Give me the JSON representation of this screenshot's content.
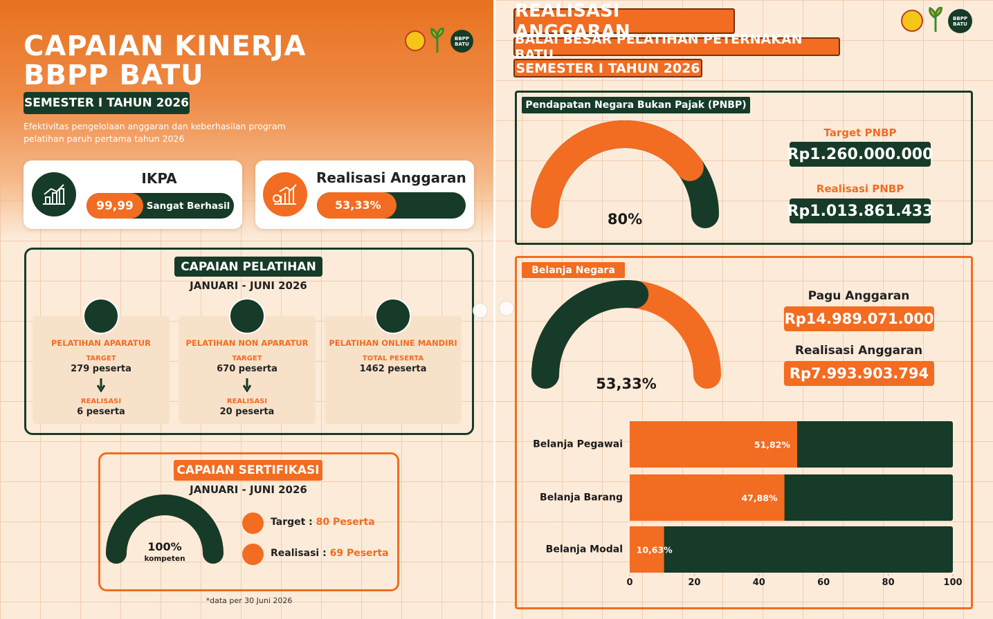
{
  "left": {
    "title_lines": [
      "CAPAIAN KINERJA",
      "BBPP BATU"
    ],
    "badge": "SEMESTER I TAHUN 2026",
    "subtitle": "Efektivitas pengelolaan anggaran dan keberhasilan program pelatihan paruh pertama tahun 2026",
    "logo_text": "BBPP BATU",
    "ikpa": {
      "title": "IKPA",
      "value": "99,99",
      "status": "Sangat Berhasil"
    },
    "realisasi": {
      "title": "Realisasi Anggaran",
      "value": 53.33,
      "value_label": "53,33%",
      "color": "#f26c21",
      "track_color": "#163b28"
    },
    "pelatihan": {
      "title": "CAPAIAN PELATIHAN",
      "period": "JANUARI - JUNI 2026",
      "cards": [
        {
          "name": "PELATIHAN APARATUR",
          "target_label": "TARGET",
          "target": "279 peserta",
          "real_label": "REALISASI",
          "real": "6 peserta"
        },
        {
          "name": "PELATIHAN NON APARATUR",
          "target_label": "TARGET",
          "target": "670 peserta",
          "real_label": "REALISASI",
          "real": "20 peserta"
        },
        {
          "name": "PELATIHAN ONLINE MANDIRI",
          "target_label": "TOTAL PESERTA",
          "target": "1462 peserta"
        }
      ]
    },
    "sertifikasi": {
      "title": "CAPAIAN SERTIFIKASI",
      "period": "JANUARI - JUNI 2026",
      "gauge": {
        "value": 100,
        "value_label": "100%",
        "caption": "kompeten",
        "color": "#163b28",
        "track_color": "#f26c21"
      },
      "target_label": "Target :",
      "target": "80 Peserta",
      "real_label": "Realisasi :",
      "real": "69 Peserta"
    },
    "footnote": "*data per 30 Juni 2026"
  },
  "right": {
    "title": "REALISASI ANGGARAN",
    "subtitle": "BALAI BESAR PELATIHAN PETERNAKAN BATU",
    "badge": "SEMESTER I TAHUN 2026",
    "logo_text": "BBPP BATU",
    "pnbp": {
      "title": "Pendapatan Negara Bukan Pajak (PNBP)",
      "gauge": {
        "value": 80,
        "value_label": "80%",
        "color": "#f26c21",
        "track_color": "#163b28"
      },
      "target_label": "Target PNBP",
      "target": "Rp1.260.000.000",
      "real_label": "Realisasi PNBP",
      "real": "Rp1.013.861.433"
    },
    "belanja": {
      "title": "Belanja Negara",
      "gauge": {
        "value": 53.33,
        "value_label": "53,33%",
        "color": "#163b28",
        "track_color": "#f26c21"
      },
      "pagu_label": "Pagu Anggaran",
      "pagu": "Rp14.989.071.000",
      "real_label": "Realisasi Anggaran",
      "real": "Rp7.993.903.794"
    }
  },
  "chart_data": {
    "type": "bar",
    "orientation": "horizontal",
    "categories": [
      "Belanja Pegawai",
      "Belanja Barang",
      "Belanja Modal"
    ],
    "values": [
      51.82,
      47.88,
      10.63
    ],
    "value_labels": [
      "51,82%",
      "47,88%",
      "10,63%"
    ],
    "color": "#f26c21",
    "track_color": "#163b28",
    "xlim": [
      0,
      100
    ],
    "xticks": [
      0,
      20,
      40,
      60,
      80,
      100
    ]
  }
}
